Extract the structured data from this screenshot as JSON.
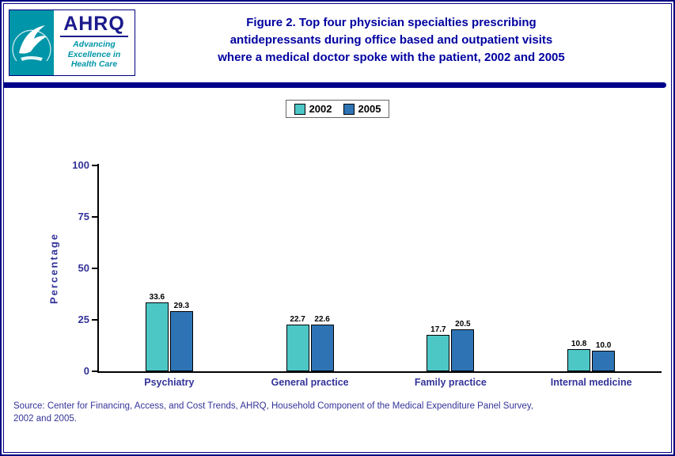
{
  "header": {
    "title": "Figure 2. Top four physician specialties prescribing\nantidepressants during office based and outpatient visits\nwhere a medical doctor spoke with the patient, 2002 and 2005"
  },
  "logo": {
    "ahrq_word": "AHRQ",
    "tagline": "Advancing\nExcellence in\nHealth Care"
  },
  "colors": {
    "navy": "#00008B",
    "title_navy": "#0000A0",
    "axis_text": "#333399",
    "series_2002": "#4DC6C6",
    "series_2005": "#2E74B5",
    "hhs_teal": "#0095A8"
  },
  "chart_data": {
    "type": "bar",
    "categories": [
      "Psychiatry",
      "General practice",
      "Family practice",
      "Internal medicine"
    ],
    "series": [
      {
        "name": "2002",
        "color": "#4DC6C6",
        "values": [
          33.6,
          22.7,
          17.7,
          10.8
        ]
      },
      {
        "name": "2005",
        "color": "#2E74B5",
        "values": [
          29.3,
          22.6,
          20.5,
          10.0
        ]
      }
    ],
    "title": "Figure 2. Top four physician specialties prescribing antidepressants during office based and outpatient visits where a medical doctor spoke with the patient, 2002 and 2005",
    "xlabel": "",
    "ylabel": "Percentage",
    "ylim": [
      0,
      100
    ],
    "yticks": [
      0,
      25,
      50,
      75,
      100
    ],
    "grid": false,
    "legend_position": "top",
    "value_label_format": "one_decimal"
  },
  "source": {
    "text": "Source: Center for Financing, Access, and Cost Trends, AHRQ, Household Component of the Medical Expenditure Panel Survey,\n2002 and 2005."
  }
}
